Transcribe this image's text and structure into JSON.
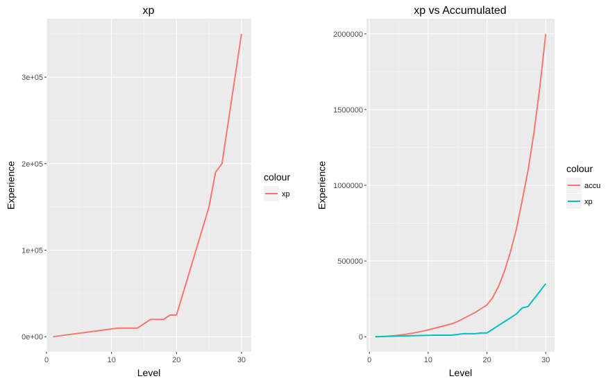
{
  "chart_data": [
    {
      "type": "line",
      "title": "xp",
      "xlabel": "Level",
      "ylabel": "Experience",
      "xlim": [
        0,
        31.5
      ],
      "ylim": [
        -17500,
        367500
      ],
      "x_ticks": [
        "0",
        "10",
        "20",
        "30"
      ],
      "y_ticks": [
        "0e+00",
        "1e+05",
        "2e+05",
        "3e+05"
      ],
      "legend_title": "colour",
      "legend_position": "right",
      "grid": true,
      "series": [
        {
          "name": "xp",
          "color": "#F8766D",
          "x": [
            1,
            2,
            3,
            4,
            5,
            6,
            7,
            8,
            9,
            10,
            11,
            12,
            13,
            14,
            15,
            16,
            17,
            18,
            19,
            20,
            21,
            22,
            23,
            24,
            25,
            26,
            27,
            28,
            29,
            30
          ],
          "y": [
            0,
            1000,
            2000,
            3000,
            4000,
            5000,
            6000,
            7000,
            8000,
            9000,
            10000,
            10000,
            10000,
            10000,
            15000,
            20000,
            20000,
            20000,
            25000,
            25000,
            50000,
            75000,
            100000,
            125000,
            150000,
            190000,
            200000,
            250000,
            300000,
            350000
          ]
        }
      ]
    },
    {
      "type": "line",
      "title": "xp vs Accumulated",
      "xlabel": "Level",
      "ylabel": "Experience",
      "xlim": [
        -0.5,
        31.5
      ],
      "ylim": [
        -100000,
        2100000
      ],
      "x_ticks": [
        "0",
        "10",
        "20",
        "30"
      ],
      "y_ticks": [
        "0",
        "500000",
        "1000000",
        "1500000",
        "2000000"
      ],
      "legend_title": "colour",
      "legend_position": "right",
      "grid": true,
      "series": [
        {
          "name": "accu",
          "color": "#F8766D",
          "x": [
            1,
            2,
            3,
            4,
            5,
            6,
            7,
            8,
            9,
            10,
            11,
            12,
            13,
            14,
            15,
            16,
            17,
            18,
            19,
            20,
            21,
            22,
            23,
            24,
            25,
            26,
            27,
            28,
            29,
            30
          ],
          "y": [
            0,
            1000,
            3000,
            6000,
            10000,
            15000,
            21000,
            28000,
            36000,
            45000,
            55000,
            65000,
            75000,
            85000,
            100000,
            120000,
            140000,
            160000,
            185000,
            210000,
            260000,
            335000,
            435000,
            560000,
            710000,
            900000,
            1100000,
            1350000,
            1650000,
            2000000
          ]
        },
        {
          "name": "xp",
          "color": "#00BFC4",
          "x": [
            1,
            2,
            3,
            4,
            5,
            6,
            7,
            8,
            9,
            10,
            11,
            12,
            13,
            14,
            15,
            16,
            17,
            18,
            19,
            20,
            21,
            22,
            23,
            24,
            25,
            26,
            27,
            28,
            29,
            30
          ],
          "y": [
            0,
            1000,
            2000,
            3000,
            4000,
            5000,
            6000,
            7000,
            8000,
            9000,
            10000,
            10000,
            10000,
            10000,
            15000,
            20000,
            20000,
            20000,
            25000,
            25000,
            50000,
            75000,
            100000,
            125000,
            150000,
            190000,
            200000,
            250000,
            300000,
            350000
          ]
        }
      ]
    }
  ]
}
